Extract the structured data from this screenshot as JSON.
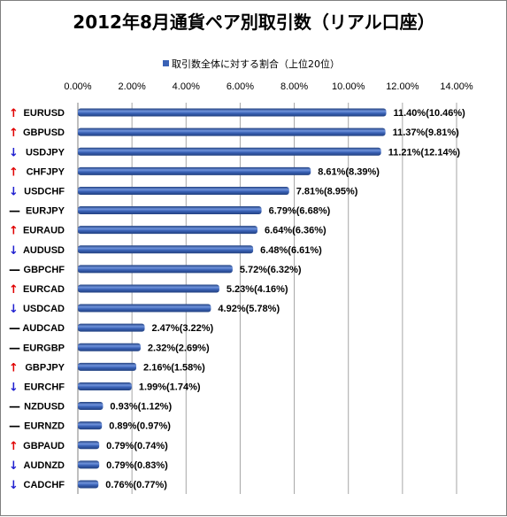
{
  "chart_data": {
    "type": "bar",
    "orientation": "horizontal",
    "title": "2012年8月通貨ペア別取引数（リアル口座）",
    "legend": "取引数全体に対する割合（上位20位）",
    "legend_position": "top",
    "grid": true,
    "xlim": [
      0,
      14
    ],
    "xticks": [
      "0.00%",
      "2.00%",
      "4.00%",
      "6.00%",
      "8.00%",
      "10.00%",
      "12.00%",
      "14.00%"
    ],
    "categories": [
      "EURUSD",
      "GBPUSD",
      "USDJPY",
      "CHFJPY",
      "USDCHF",
      "EURJPY",
      "EURAUD",
      "AUDUSD",
      "GBPCHF",
      "EURCAD",
      "USDCAD",
      "AUDCAD",
      "EURGBP",
      "GBPJPY",
      "EURCHF",
      "NZDUSD",
      "EURNZD",
      "GBPAUD",
      "AUDNZD",
      "CADCHF"
    ],
    "trend": [
      "up",
      "up",
      "down",
      "up",
      "down",
      "flat",
      "up",
      "down",
      "flat",
      "up",
      "down",
      "flat",
      "flat",
      "up",
      "down",
      "flat",
      "flat",
      "up",
      "down",
      "down"
    ],
    "series": [
      {
        "name": "取引数全体に対する割合（上位20位）",
        "values": [
          11.4,
          11.37,
          11.21,
          8.61,
          7.81,
          6.79,
          6.64,
          6.48,
          5.72,
          5.23,
          4.92,
          2.47,
          2.32,
          2.16,
          1.99,
          0.93,
          0.89,
          0.79,
          0.79,
          0.76
        ]
      }
    ],
    "data_labels": [
      "11.40%(10.46%)",
      "11.37%(9.81%)",
      "11.21%(12.14%)",
      "8.61%(8.39%)",
      "7.81%(8.95%)",
      "6.79%(6.68%)",
      "6.64%(6.36%)",
      "6.48%(6.61%)",
      "5.72%(6.32%)",
      "5.23%(4.16%)",
      "4.92%(5.78%)",
      "2.47%(3.22%)",
      "2.32%(2.69%)",
      "2.16%(1.58%)",
      "1.99%(1.74%)",
      "0.93%(1.12%)",
      "0.89%(0.97%)",
      "0.79%(0.74%)",
      "0.79%(0.83%)",
      "0.76%(0.77%)"
    ],
    "colors": {
      "bar": "#3a62b6",
      "bar_light": "#6f93dc",
      "bar_dark": "#21407f",
      "grid": "#a6a6a6",
      "up": "#e00000",
      "down": "#1f1fd0",
      "flat": "#000000"
    }
  }
}
